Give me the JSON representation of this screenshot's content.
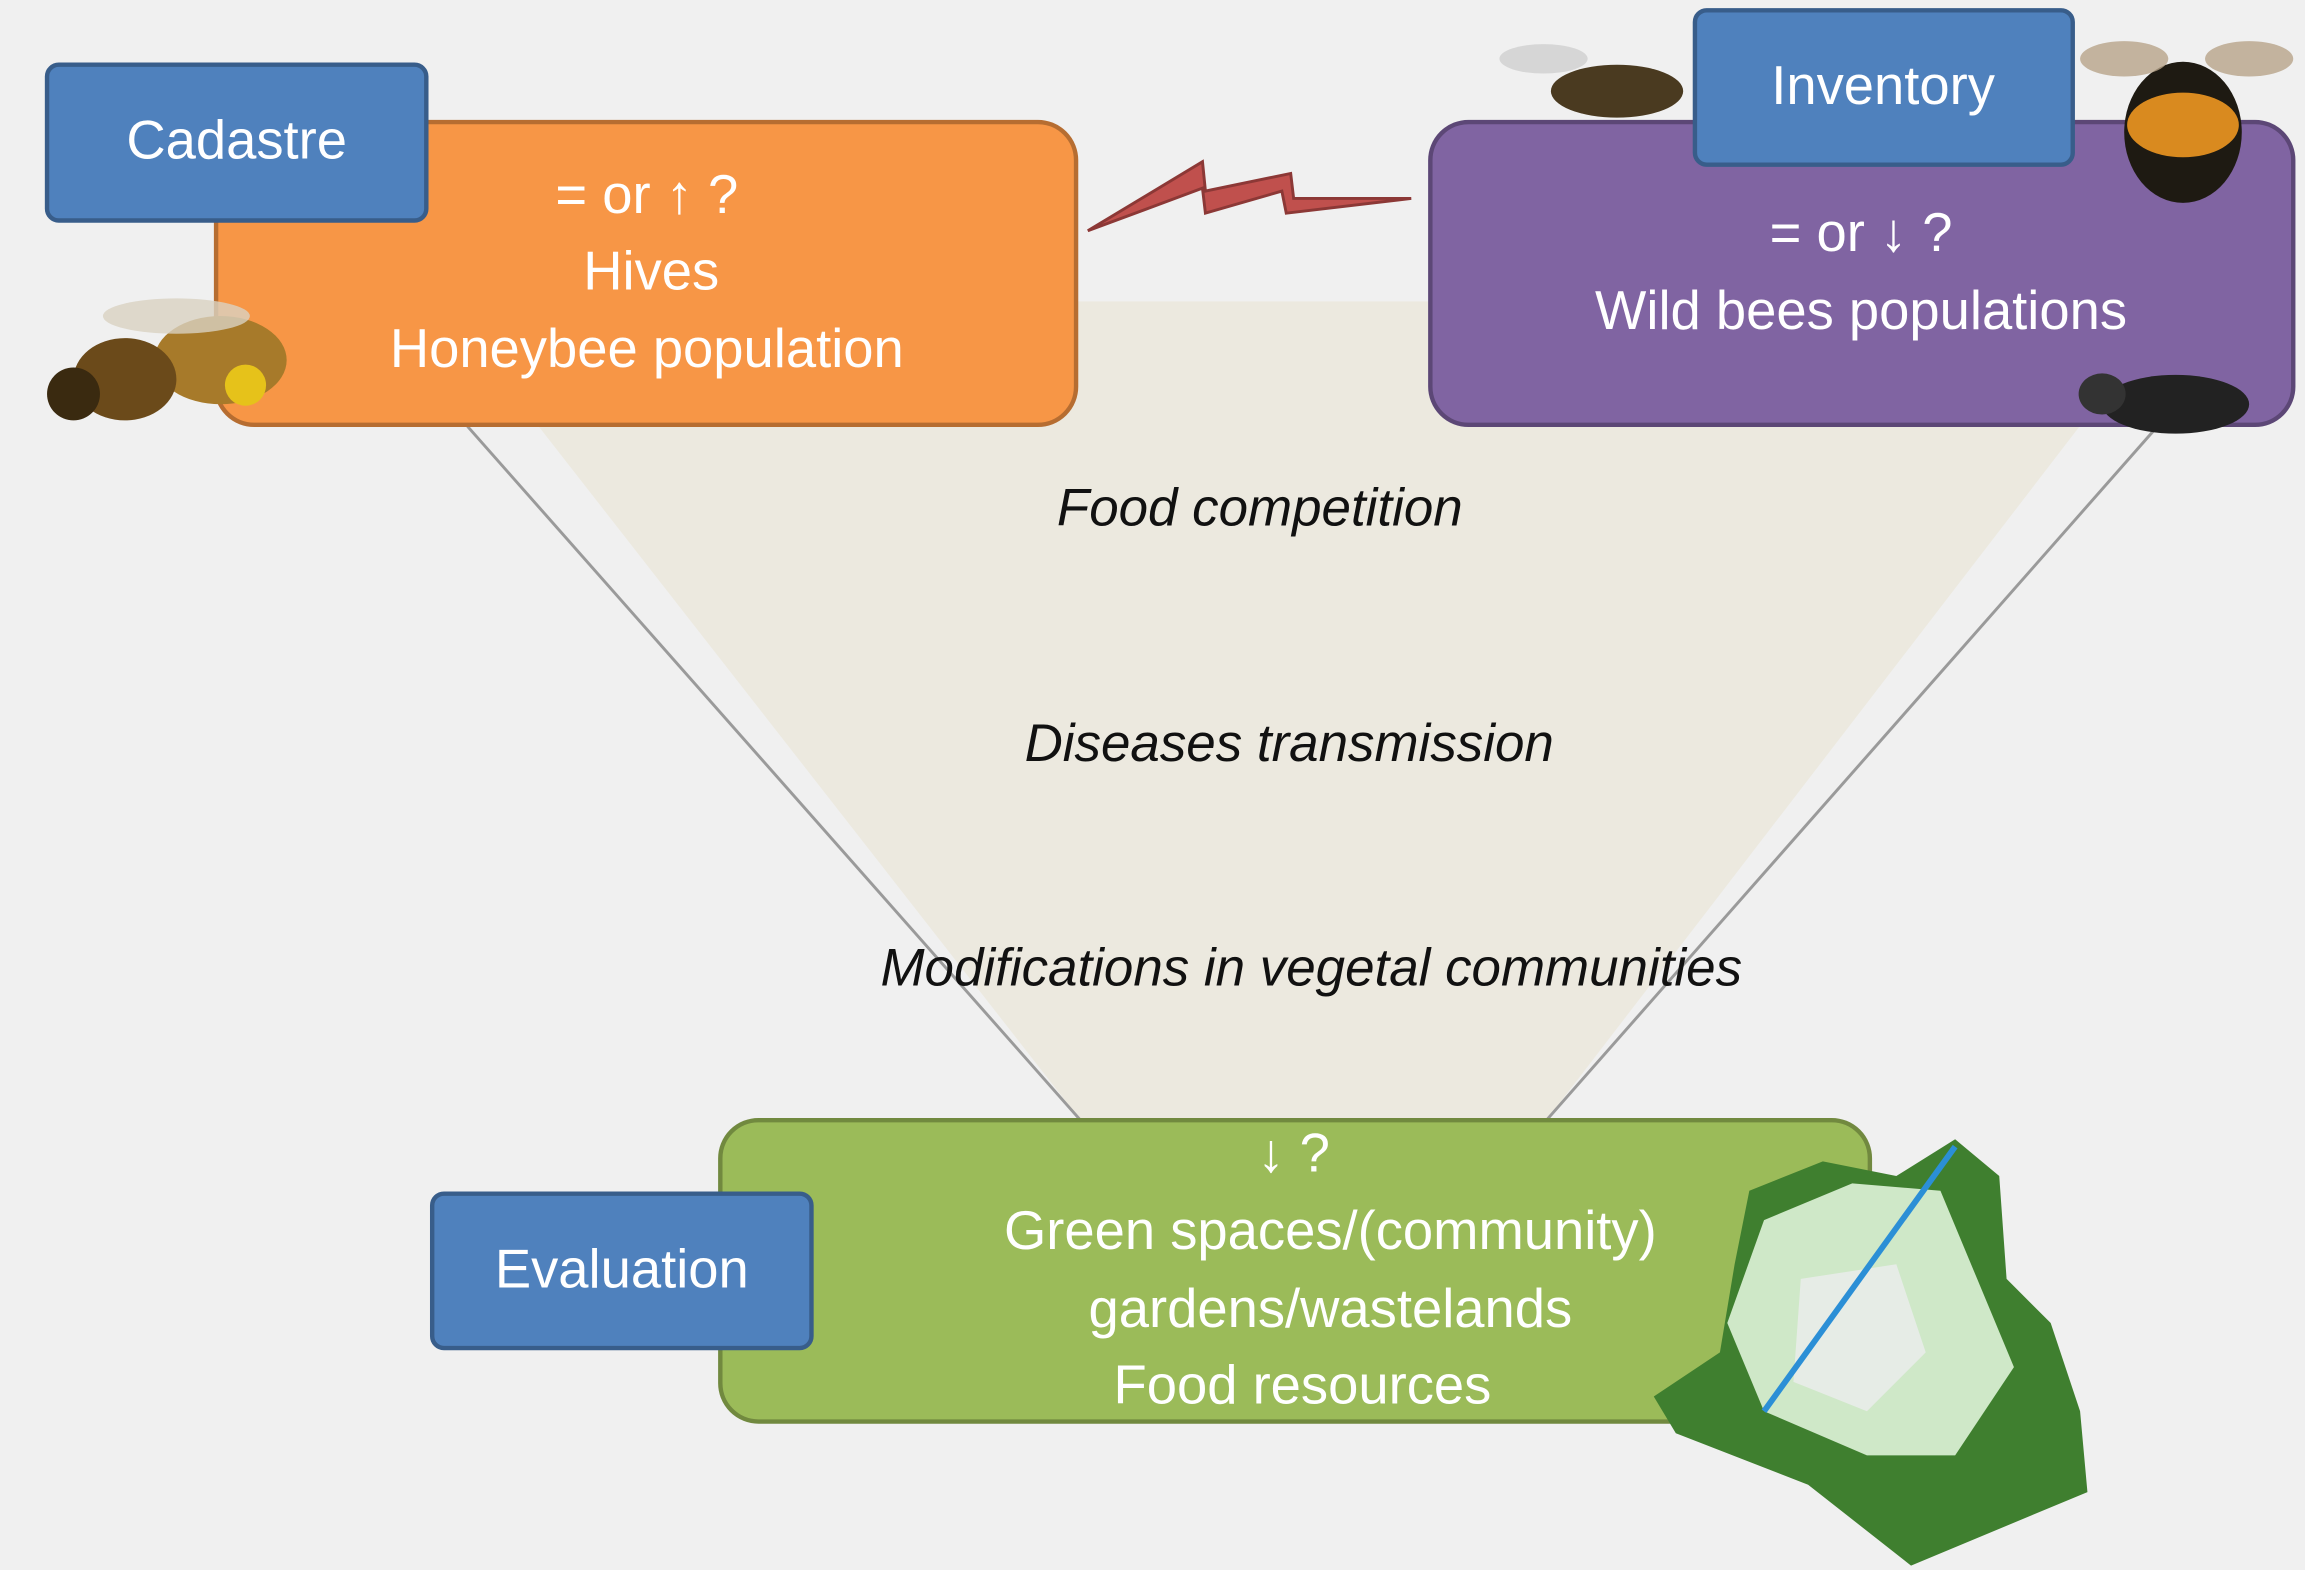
{
  "nodes": [
    {
      "tag": "Cadastre",
      "lines": [
        "= or ↑ ?",
        "Hives",
        "Honeybee population"
      ]
    },
    {
      "tag": "Inventory",
      "lines": [
        "= or ↓ ?",
        "Wild bees populations"
      ]
    },
    {
      "tag": "Evaluation",
      "lines": [
        "↓ ?",
        "Green spaces/(community)",
        "gardens/wastelands",
        "Food resources"
      ]
    }
  ],
  "interactions": [
    "Food competition",
    "Diseases transmission",
    "Modifications in vegetal communities"
  ]
}
